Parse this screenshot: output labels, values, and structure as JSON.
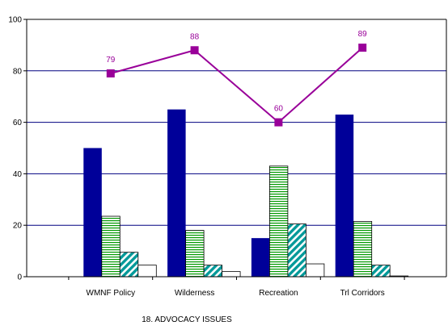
{
  "chart_data": {
    "type": "bar",
    "title": "",
    "xlabel": "18. ADVOCACY ISSUES",
    "ylabel": "",
    "ylim": [
      0,
      100
    ],
    "yticks": [
      0,
      20,
      40,
      60,
      80,
      100
    ],
    "grid": true,
    "legend": "none",
    "categories": [
      "WMNF Policy",
      "Wilderness",
      "Recreation",
      "Trl Corridors"
    ],
    "series": [
      {
        "type": "bar",
        "values": [
          50,
          65,
          15,
          63
        ],
        "color": "#000099",
        "pattern": "solid"
      },
      {
        "type": "bar",
        "values": [
          23.5,
          18,
          43,
          21.5
        ],
        "color": "#009900",
        "pattern": "horizontal-lines"
      },
      {
        "type": "bar",
        "values": [
          9.5,
          4.5,
          20.5,
          4.5
        ],
        "color": "#009999",
        "pattern": "diagonal-stripes"
      },
      {
        "type": "bar",
        "values": [
          4.5,
          2,
          5,
          0.3
        ],
        "color": "#ffffff",
        "pattern": "outline"
      },
      {
        "type": "line",
        "values": [
          79,
          88,
          60,
          89
        ],
        "color": "#990099",
        "marker": "square",
        "labels": [
          "79",
          "88",
          "60",
          "89"
        ]
      }
    ]
  },
  "colors": {
    "axis": "#000000",
    "grid": "#000080"
  }
}
